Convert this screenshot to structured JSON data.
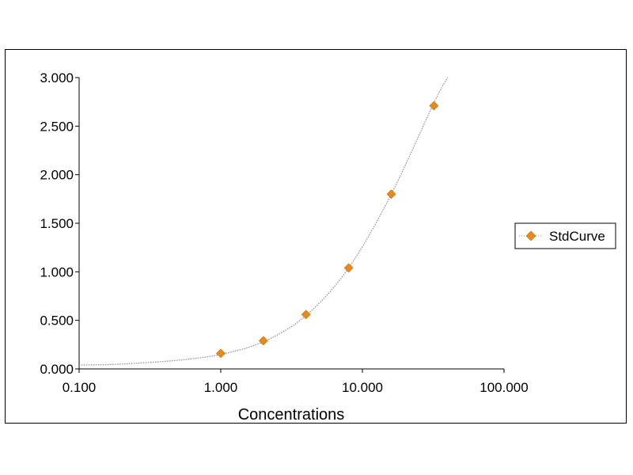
{
  "chart_data": {
    "type": "scatter",
    "title": "",
    "xlabel": "Concentrations",
    "ylabel": "",
    "x_scale": "log",
    "xlim": [
      0.1,
      100
    ],
    "ylim": [
      0,
      3
    ],
    "x_ticks": [
      "0.100",
      "1.000",
      "10.000",
      "100.000"
    ],
    "y_ticks": [
      "0.000",
      "0.500",
      "1.000",
      "1.500",
      "2.000",
      "2.500",
      "3.000"
    ],
    "grid": false,
    "legend_position": "right",
    "series": [
      {
        "name": "StdCurve",
        "color": "#e8891c",
        "marker": "diamond",
        "x": [
          1,
          2,
          4,
          8,
          16,
          32
        ],
        "y": [
          0.16,
          0.29,
          0.56,
          1.04,
          1.8,
          2.71
        ]
      }
    ],
    "fit_curve": {
      "color": "#8a8a8a",
      "style": "dotted",
      "x": [
        0.1,
        0.2,
        0.5,
        1,
        2,
        4,
        8,
        16,
        32,
        40
      ],
      "y": [
        0.04,
        0.05,
        0.09,
        0.15,
        0.28,
        0.55,
        1.04,
        1.8,
        2.74,
        3.0
      ]
    }
  }
}
